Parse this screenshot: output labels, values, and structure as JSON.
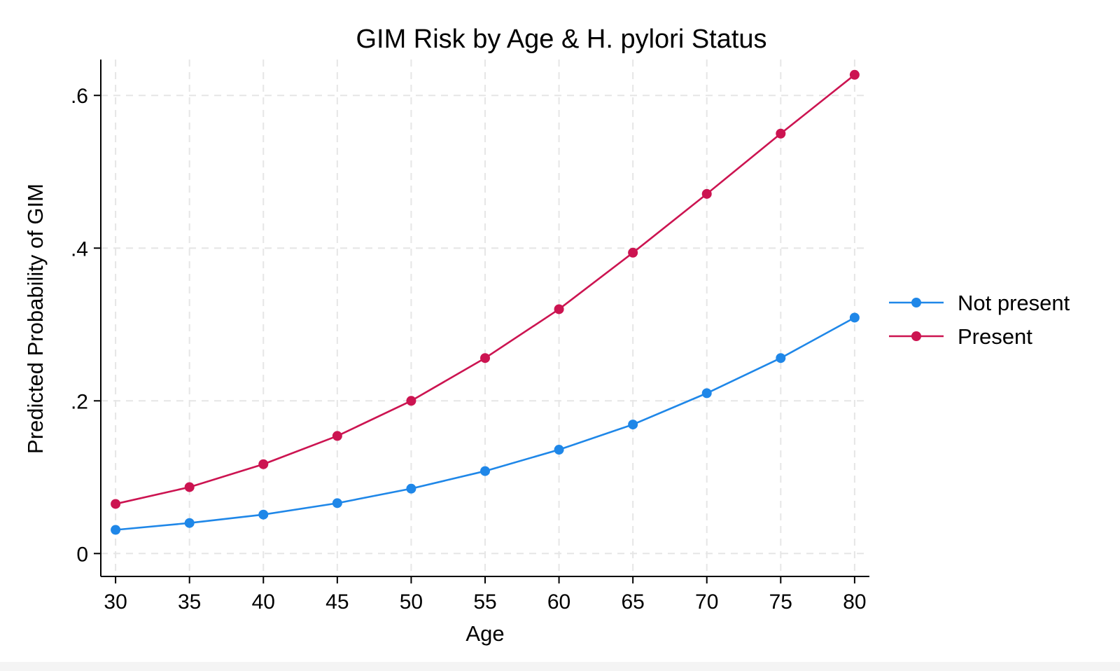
{
  "chart_data": {
    "type": "line",
    "title": "GIM Risk by Age & H. pylori Status",
    "xlabel": "Age",
    "ylabel": "Predicted Probability of GIM",
    "x": [
      30,
      35,
      40,
      45,
      50,
      55,
      60,
      65,
      70,
      75,
      80
    ],
    "xlim": [
      29,
      81
    ],
    "ylim": [
      -0.03,
      0.647
    ],
    "xticks": [
      30,
      35,
      40,
      45,
      50,
      55,
      60,
      65,
      70,
      75,
      80
    ],
    "xtick_labels": [
      "30",
      "35",
      "40",
      "45",
      "50",
      "55",
      "60",
      "65",
      "70",
      "75",
      "80"
    ],
    "yticks": [
      0,
      0.2,
      0.4,
      0.6
    ],
    "ytick_labels": [
      "0",
      ".2",
      ".4",
      ".6"
    ],
    "grid": true,
    "legend_position": "right",
    "series": [
      {
        "name": "Not present",
        "color": "#1f87e8",
        "values": [
          0.031,
          0.04,
          0.051,
          0.066,
          0.085,
          0.108,
          0.136,
          0.169,
          0.21,
          0.256,
          0.309
        ]
      },
      {
        "name": "Present",
        "color": "#cc1451",
        "values": [
          0.065,
          0.087,
          0.117,
          0.154,
          0.2,
          0.256,
          0.32,
          0.394,
          0.471,
          0.55,
          0.627
        ]
      }
    ]
  }
}
